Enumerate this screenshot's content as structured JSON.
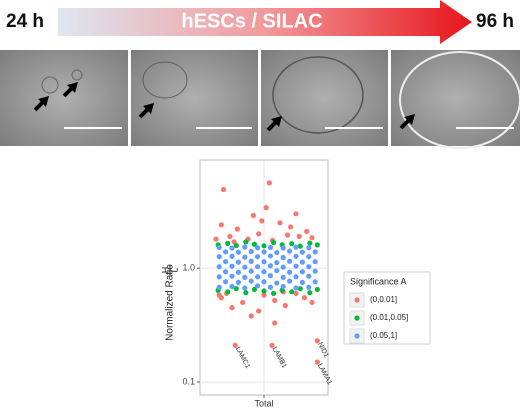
{
  "header": {
    "start": "24 h",
    "title": "hESCs / SILAC",
    "end": "96 h"
  },
  "chart_data": {
    "type": "scatter",
    "ylabel": "Normalized Ratio",
    "ylabel_fraction": {
      "numerator": "H",
      "denominator": "L"
    },
    "log_y": true,
    "grid": true,
    "xlim": [
      0.4,
      1.6
    ],
    "xticks": [
      {
        "value": 1,
        "label": "Total"
      }
    ],
    "ylim": [
      0.077,
      8.9
    ],
    "yticks": [
      0.1,
      {
        "value": 1,
        "label": "1.0"
      }
    ],
    "legend_title": "Significance A",
    "legend_position": "right",
    "series": [
      {
        "name": "(0,0.01]",
        "color": "#f8766d",
        "x": [
          0.62,
          1.05,
          1.02,
          0.9,
          1.3,
          0.6,
          0.75,
          1.15,
          1.4,
          0.68,
          0.95,
          1.22,
          1.45,
          0.55,
          0.85,
          1.08,
          1.33,
          0.72,
          1.25,
          0.98,
          0.6,
          0.8,
          1.1,
          1.38,
          0.7,
          0.95,
          1.2,
          1.45,
          0.58,
          1.0,
          1.3,
          0.88,
          1.1,
          0.65,
          1.18,
          0.73,
          1.075,
          1.5,
          1.5
        ],
        "y": [
          4.9,
          5.6,
          3.4,
          2.9,
          3.0,
          2.4,
          2.2,
          2.5,
          2.1,
          1.9,
          2.0,
          1.95,
          1.85,
          1.8,
          1.8,
          1.75,
          1.9,
          1.7,
          2.3,
          2.6,
          0.55,
          0.5,
          0.52,
          0.55,
          0.45,
          0.42,
          0.47,
          0.5,
          0.58,
          0.58,
          0.6,
          0.38,
          0.33,
          0.6,
          0.62,
          0.21,
          0.21,
          0.23,
          0.15
        ],
        "labels": [
          null,
          null,
          null,
          null,
          null,
          null,
          null,
          null,
          null,
          null,
          null,
          null,
          null,
          null,
          null,
          null,
          null,
          null,
          null,
          null,
          null,
          null,
          null,
          null,
          null,
          null,
          null,
          null,
          null,
          null,
          null,
          null,
          null,
          null,
          null,
          "LAMC1",
          "LAMB1",
          "NID1",
          "LAMA1"
        ]
      },
      {
        "name": "(0.01,0.05]",
        "color": "#00ba38",
        "x": [
          0.57,
          0.66,
          0.74,
          0.83,
          0.91,
          1.0,
          1.09,
          1.17,
          1.26,
          1.34,
          1.43,
          1.5,
          0.57,
          0.66,
          0.74,
          0.83,
          0.91,
          1.0,
          1.09,
          1.17,
          1.26,
          1.34,
          1.43,
          1.5
        ],
        "y": [
          1.6,
          1.65,
          1.58,
          1.7,
          1.62,
          1.57,
          1.68,
          1.6,
          1.64,
          1.56,
          1.66,
          1.6,
          0.64,
          0.62,
          0.66,
          0.61,
          0.65,
          0.63,
          0.6,
          0.64,
          0.62,
          0.66,
          0.61,
          0.65
        ]
      },
      {
        "name": "(0.05,1]",
        "color": "#619cff",
        "x": [
          0.58,
          0.7,
          0.82,
          0.94,
          1.06,
          1.18,
          1.3,
          1.42,
          0.64,
          0.76,
          0.88,
          1.0,
          1.12,
          1.24,
          1.36,
          1.48,
          0.58,
          0.7,
          0.82,
          0.94,
          1.06,
          1.18,
          1.3,
          1.42,
          0.64,
          0.76,
          0.88,
          1.0,
          1.12,
          1.24,
          1.36,
          1.48,
          0.58,
          0.7,
          0.82,
          0.94,
          1.06,
          1.18,
          1.3,
          1.42,
          0.64,
          0.76,
          0.88,
          1.0,
          1.12,
          1.24,
          1.36,
          1.48,
          0.58,
          0.7,
          0.82,
          0.94,
          1.06,
          1.18,
          1.3,
          1.42,
          0.64,
          0.76,
          0.88,
          1.0,
          1.12,
          1.24,
          1.36,
          1.48,
          0.58,
          0.7,
          0.82,
          0.94,
          1.06,
          1.18,
          1.3,
          1.42
        ],
        "y": [
          0.68,
          0.69,
          0.67,
          0.7,
          0.68,
          0.69,
          0.67,
          0.68,
          0.76,
          0.75,
          0.77,
          0.76,
          0.74,
          0.77,
          0.75,
          0.76,
          0.84,
          0.85,
          0.83,
          0.84,
          0.86,
          0.83,
          0.84,
          0.85,
          0.93,
          0.92,
          0.94,
          0.93,
          0.95,
          0.92,
          0.93,
          0.94,
          1.03,
          1.04,
          1.02,
          1.03,
          1.05,
          1.02,
          1.04,
          1.03,
          1.14,
          1.13,
          1.15,
          1.14,
          1.12,
          1.15,
          1.13,
          1.14,
          1.26,
          1.27,
          1.25,
          1.26,
          1.28,
          1.24,
          1.27,
          1.26,
          1.39,
          1.38,
          1.4,
          1.39,
          1.37,
          1.41,
          1.38,
          1.39,
          1.52,
          1.5,
          1.53,
          1.51,
          1.52,
          1.5,
          1.53,
          1.51
        ]
      }
    ]
  }
}
